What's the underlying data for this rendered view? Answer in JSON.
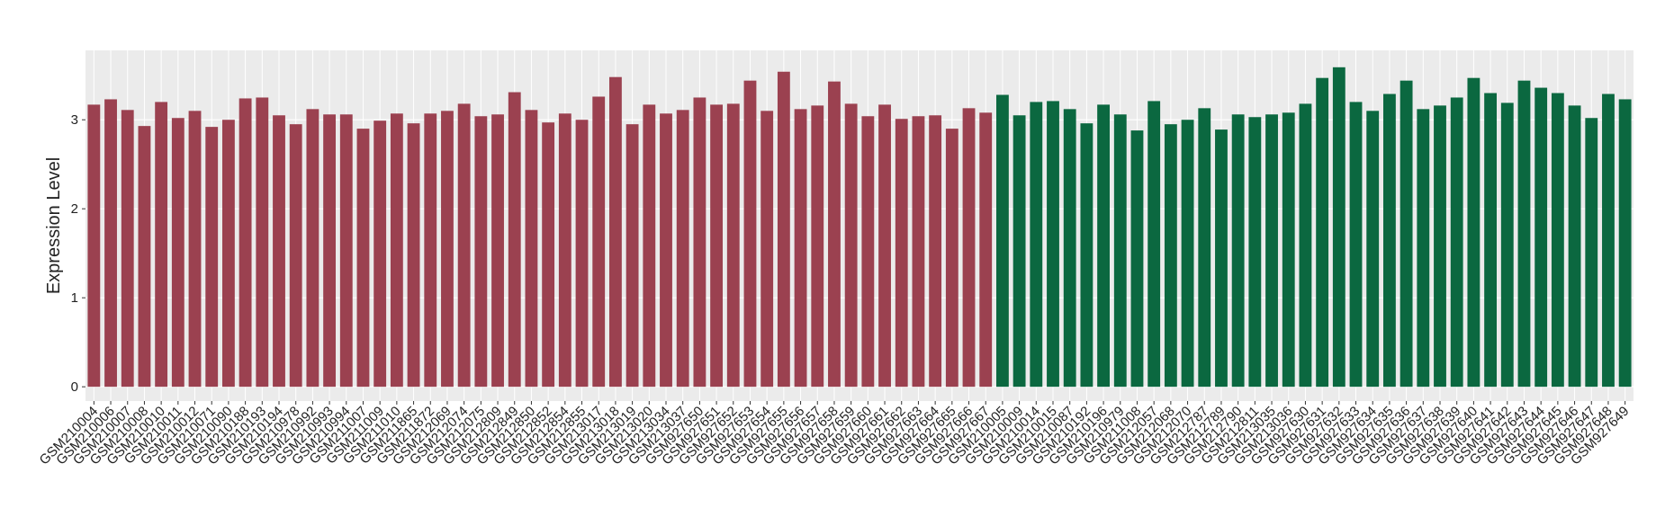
{
  "chart_data": {
    "type": "bar",
    "y_label": "Expression Level",
    "categories": [
      "GSM210004",
      "GSM210006",
      "GSM210007",
      "GSM210008",
      "GSM210010",
      "GSM210011",
      "GSM210012",
      "GSM210071",
      "GSM210090",
      "GSM210188",
      "GSM210193",
      "GSM210194",
      "GSM210978",
      "GSM210992",
      "GSM210993",
      "GSM210994",
      "GSM211007",
      "GSM211009",
      "GSM211010",
      "GSM211865",
      "GSM211872",
      "GSM212069",
      "GSM212074",
      "GSM212075",
      "GSM212809",
      "GSM212849",
      "GSM212850",
      "GSM212852",
      "GSM212854",
      "GSM212855",
      "GSM213017",
      "GSM213018",
      "GSM213019",
      "GSM213020",
      "GSM213034",
      "GSM213037",
      "GSM927650",
      "GSM927651",
      "GSM927652",
      "GSM927653",
      "GSM927654",
      "GSM927655",
      "GSM927656",
      "GSM927657",
      "GSM927658",
      "GSM927659",
      "GSM927660",
      "GSM927661",
      "GSM927662",
      "GSM927663",
      "GSM927664",
      "GSM927665",
      "GSM927666",
      "GSM927667",
      "GSM210005",
      "GSM210009",
      "GSM210014",
      "GSM210015",
      "GSM210087",
      "GSM210192",
      "GSM210196",
      "GSM210979",
      "GSM211008",
      "GSM212057",
      "GSM212068",
      "GSM212070",
      "GSM212787",
      "GSM212789",
      "GSM212790",
      "GSM212811",
      "GSM213035",
      "GSM213036",
      "GSM927630",
      "GSM927631",
      "GSM927632",
      "GSM927633",
      "GSM927634",
      "GSM927635",
      "GSM927636",
      "GSM927637",
      "GSM927638",
      "GSM927639",
      "GSM927640",
      "GSM927641",
      "GSM927642",
      "GSM927643",
      "GSM927644",
      "GSM927645",
      "GSM927646",
      "GSM927647",
      "GSM927648",
      "GSM927649"
    ],
    "series": [
      {
        "color": "#9b4150",
        "values": [
          3.17,
          3.23,
          3.11,
          2.93,
          3.2,
          3.02,
          3.1,
          2.92,
          3.0,
          3.24,
          3.25,
          3.05,
          2.95,
          3.12,
          3.06,
          3.06,
          2.9,
          2.99,
          3.07,
          2.96,
          3.07,
          3.1,
          3.18,
          3.04,
          3.06,
          3.31,
          3.11,
          2.97,
          3.07,
          3.0,
          3.26,
          3.48,
          2.95,
          3.17,
          3.07,
          3.11,
          3.25,
          3.17,
          3.18,
          3.44,
          3.1,
          3.54,
          3.12,
          3.16,
          3.43,
          3.18,
          3.04,
          3.17,
          3.01,
          3.04,
          3.05,
          2.9,
          3.13,
          3.08,
          null,
          null,
          null,
          null,
          null,
          null,
          null,
          null,
          null,
          null,
          null,
          null,
          null,
          null,
          null,
          null,
          null,
          null,
          null,
          null,
          null,
          null,
          null,
          null,
          null,
          null,
          null,
          null,
          null,
          null,
          null,
          null,
          null,
          null,
          null,
          null,
          null,
          null
        ]
      },
      {
        "color": "#0b6840",
        "values": [
          null,
          null,
          null,
          null,
          null,
          null,
          null,
          null,
          null,
          null,
          null,
          null,
          null,
          null,
          null,
          null,
          null,
          null,
          null,
          null,
          null,
          null,
          null,
          null,
          null,
          null,
          null,
          null,
          null,
          null,
          null,
          null,
          null,
          null,
          null,
          null,
          null,
          null,
          null,
          null,
          null,
          null,
          null,
          null,
          null,
          null,
          null,
          null,
          null,
          null,
          null,
          null,
          null,
          null,
          3.28,
          3.05,
          3.2,
          3.21,
          3.12,
          2.96,
          3.17,
          3.06,
          2.88,
          3.21,
          2.95,
          3.0,
          3.13,
          2.89,
          3.06,
          3.03,
          3.06,
          3.08,
          3.18,
          3.47,
          3.59,
          3.2,
          3.1,
          3.29,
          3.44,
          3.12,
          3.16,
          3.25,
          3.47,
          3.3,
          3.19,
          3.44,
          3.36,
          3.3,
          3.16,
          3.02,
          3.29,
          3.23
        ]
      }
    ],
    "ylim": [
      -0.16,
      3.78
    ],
    "yticks": [
      0,
      1,
      2,
      3
    ],
    "grid": true
  }
}
